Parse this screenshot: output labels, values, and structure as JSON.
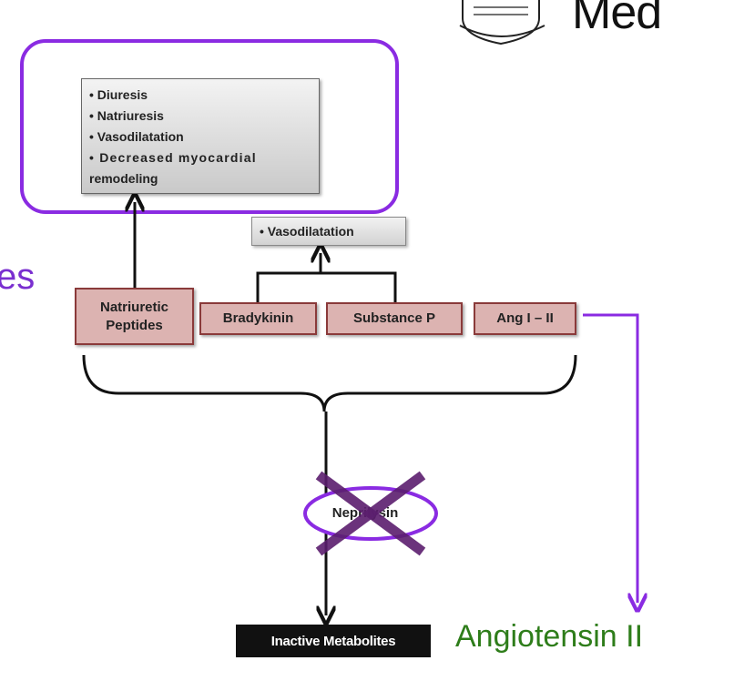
{
  "header": {
    "logo_word": "Med"
  },
  "left_fragment": "es",
  "effects_box": {
    "lines": [
      "• Diuresis",
      "• Natriuresis",
      "• Vasodilatation",
      "• Decreased myocardial",
      "remodeling"
    ]
  },
  "vasodilatation_box": "• Vasodilatation",
  "peptides": {
    "natriuretic": [
      "Natriuretic",
      "Peptides"
    ],
    "bradykinin": "Bradykinin",
    "substance_p": "Substance P",
    "ang": "Ang I – II"
  },
  "enzyme": "Neprilysin",
  "inactive_metabolites": "Inactive Metabolites",
  "angiotensin_label": "Angiotensin II",
  "colors": {
    "purple": "#8a2be2",
    "cross": "#5b1e6e",
    "green": "#2e7d1a",
    "peptide_fill": "#dcb3b1",
    "peptide_border": "#8a3a3a"
  }
}
